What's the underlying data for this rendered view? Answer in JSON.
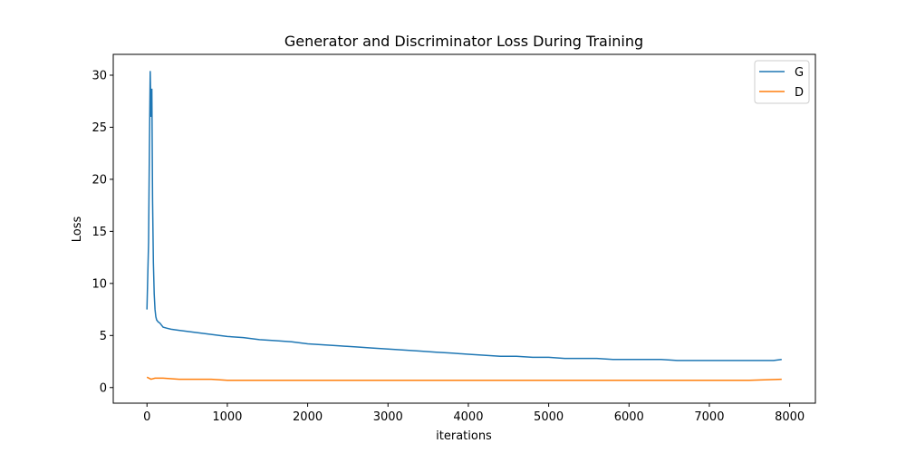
{
  "chart_data": {
    "type": "line",
    "title": "Generator and Discriminator Loss During Training",
    "xlabel": "iterations",
    "ylabel": "Loss",
    "xlim": [
      -420,
      8320
    ],
    "ylim": [
      -1.5,
      32
    ],
    "xticks": [
      0,
      1000,
      2000,
      3000,
      4000,
      5000,
      6000,
      7000,
      8000
    ],
    "yticks": [
      0,
      5,
      10,
      15,
      20,
      25,
      30
    ],
    "grid": false,
    "legend_position": "top-right",
    "series": [
      {
        "name": "G",
        "color": "#1f77b4",
        "x": [
          0,
          20,
          30,
          40,
          50,
          60,
          70,
          80,
          90,
          100,
          110,
          120,
          140,
          160,
          180,
          200,
          250,
          300,
          400,
          500,
          600,
          700,
          800,
          900,
          1000,
          1200,
          1400,
          1600,
          1800,
          2000,
          2200,
          2400,
          2600,
          2800,
          3000,
          3200,
          3400,
          3600,
          3800,
          4000,
          4200,
          4400,
          4600,
          4800,
          5000,
          5200,
          5400,
          5600,
          5800,
          6000,
          6200,
          6400,
          6600,
          6800,
          7000,
          7200,
          7400,
          7600,
          7800,
          7900
        ],
        "y": [
          7.5,
          14,
          23,
          30.4,
          26,
          28.7,
          18,
          12,
          9,
          7.5,
          6.8,
          6.5,
          6.3,
          6.2,
          6.0,
          5.8,
          5.7,
          5.6,
          5.5,
          5.4,
          5.3,
          5.2,
          5.1,
          5.0,
          4.9,
          4.8,
          4.6,
          4.5,
          4.4,
          4.2,
          4.1,
          4.0,
          3.9,
          3.8,
          3.7,
          3.6,
          3.5,
          3.4,
          3.3,
          3.2,
          3.1,
          3.0,
          3.0,
          2.9,
          2.9,
          2.8,
          2.8,
          2.8,
          2.7,
          2.7,
          2.7,
          2.7,
          2.6,
          2.6,
          2.6,
          2.6,
          2.6,
          2.6,
          2.6,
          2.7
        ]
      },
      {
        "name": "D",
        "color": "#ff7f0e",
        "x": [
          0,
          50,
          100,
          200,
          400,
          600,
          800,
          1000,
          1500,
          2000,
          2500,
          3000,
          3500,
          4000,
          4500,
          5000,
          5500,
          6000,
          6500,
          7000,
          7500,
          7900
        ],
        "y": [
          1.0,
          0.8,
          0.9,
          0.9,
          0.8,
          0.8,
          0.8,
          0.7,
          0.7,
          0.7,
          0.7,
          0.7,
          0.7,
          0.7,
          0.7,
          0.7,
          0.7,
          0.7,
          0.7,
          0.7,
          0.7,
          0.8
        ]
      }
    ]
  }
}
